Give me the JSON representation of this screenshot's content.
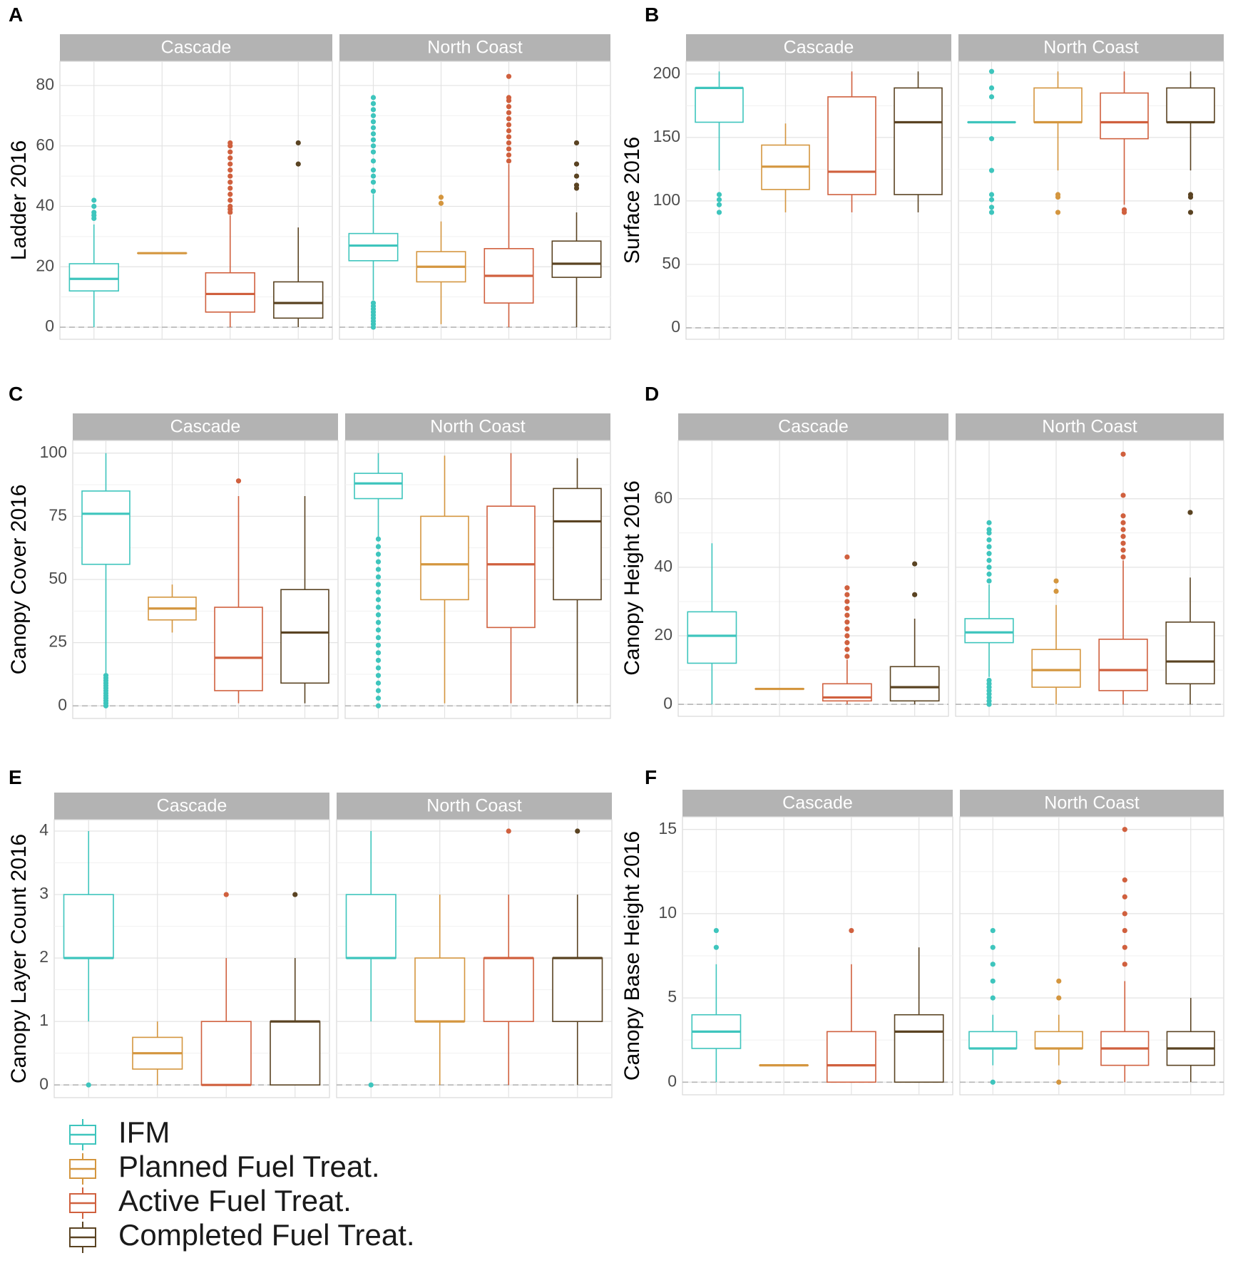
{
  "legend": {
    "items": [
      {
        "label": "IFM",
        "color": "#3ec5bd"
      },
      {
        "label": "Planned Fuel Treat.",
        "color": "#d4963f"
      },
      {
        "label": "Active Fuel Treat.",
        "color": "#d0603e"
      },
      {
        "label": "Completed Fuel Treat.",
        "color": "#5a4322"
      }
    ]
  },
  "chart_data": [
    {
      "type": "boxplot",
      "letter": "A",
      "ylabel": "Ladder 2016",
      "ylim": [
        -4,
        88
      ],
      "yticks": [
        0,
        20,
        40,
        60,
        80
      ],
      "facets": [
        {
          "name": "Cascade",
          "boxes": [
            {
              "group": "IFM",
              "min": 0,
              "q1": 12,
              "median": 16,
              "q3": 21,
              "max": 34,
              "outliers": [
                36,
                37,
                38,
                40,
                42
              ]
            },
            {
              "group": "Planned Fuel Treat.",
              "min": 24.5,
              "q1": 24.5,
              "median": 24.5,
              "q3": 24.5,
              "max": 24.5,
              "outliers": []
            },
            {
              "group": "Active Fuel Treat.",
              "min": 0,
              "q1": 5,
              "median": 11,
              "q3": 18,
              "max": 37,
              "outliers": [
                38,
                39,
                40,
                42,
                44,
                46,
                48,
                50,
                52,
                54,
                56,
                58,
                60,
                61
              ]
            },
            {
              "group": "Completed Fuel Treat.",
              "min": 0,
              "q1": 3,
              "median": 8,
              "q3": 15,
              "max": 33,
              "outliers": [
                54,
                61
              ]
            }
          ]
        },
        {
          "name": "North Coast",
          "boxes": [
            {
              "group": "IFM",
              "min": 9,
              "q1": 22,
              "median": 27,
              "q3": 31,
              "max": 44,
              "outliers": [
                0,
                1,
                2,
                3,
                4,
                5,
                6,
                7,
                8,
                45,
                48,
                50,
                52,
                55,
                58,
                60,
                62,
                64,
                66,
                68,
                70,
                72,
                74,
                76
              ]
            },
            {
              "group": "Planned Fuel Treat.",
              "min": 1,
              "q1": 15,
              "median": 20,
              "q3": 25,
              "max": 35,
              "outliers": [
                41,
                43
              ]
            },
            {
              "group": "Active Fuel Treat.",
              "min": 0,
              "q1": 8,
              "median": 17,
              "q3": 26,
              "max": 54,
              "outliers": [
                55,
                57,
                59,
                61,
                63,
                65,
                67,
                69,
                71,
                73,
                75,
                76,
                83
              ]
            },
            {
              "group": "Completed Fuel Treat.",
              "min": 0,
              "q1": 16.5,
              "median": 21,
              "q3": 28.5,
              "max": 38,
              "outliers": [
                46,
                47,
                50,
                54,
                61
              ]
            }
          ]
        }
      ]
    },
    {
      "type": "boxplot",
      "letter": "B",
      "ylabel": "Surface 2016",
      "ylim": [
        -9,
        210
      ],
      "yticks": [
        0,
        50,
        100,
        150,
        200
      ],
      "facets": [
        {
          "name": "Cascade",
          "boxes": [
            {
              "group": "IFM",
              "min": 124,
              "q1": 162,
              "median": 189,
              "q3": 189,
              "max": 202,
              "outliers": [
                91,
                97,
                101,
                105
              ]
            },
            {
              "group": "Planned Fuel Treat.",
              "min": 91,
              "q1": 109,
              "median": 127,
              "q3": 144,
              "max": 161,
              "outliers": []
            },
            {
              "group": "Active Fuel Treat.",
              "min": 91,
              "q1": 105,
              "median": 123,
              "q3": 182,
              "max": 202,
              "outliers": []
            },
            {
              "group": "Completed Fuel Treat.",
              "min": 91,
              "q1": 105,
              "median": 162,
              "q3": 189,
              "max": 202,
              "outliers": []
            }
          ]
        },
        {
          "name": "North Coast",
          "boxes": [
            {
              "group": "IFM",
              "min": 162,
              "q1": 162,
              "median": 162,
              "q3": 162,
              "max": 162,
              "outliers": [
                91,
                95,
                101,
                105,
                124,
                149,
                182,
                189,
                202
              ]
            },
            {
              "group": "Planned Fuel Treat.",
              "min": 124,
              "q1": 162,
              "median": 162,
              "q3": 189,
              "max": 202,
              "outliers": [
                91,
                103,
                105
              ]
            },
            {
              "group": "Active Fuel Treat.",
              "min": 97,
              "q1": 149,
              "median": 162,
              "q3": 185,
              "max": 202,
              "outliers": [
                91,
                93
              ]
            },
            {
              "group": "Completed Fuel Treat.",
              "min": 124,
              "q1": 162,
              "median": 162,
              "q3": 189,
              "max": 202,
              "outliers": [
                91,
                103,
                105
              ]
            }
          ]
        }
      ]
    },
    {
      "type": "boxplot",
      "letter": "C",
      "ylabel": "Canopy Cover 2016",
      "ylim": [
        -5,
        105
      ],
      "yticks": [
        0,
        25,
        50,
        75,
        100
      ],
      "facets": [
        {
          "name": "Cascade",
          "boxes": [
            {
              "group": "IFM",
              "min": 13,
              "q1": 56,
              "median": 76,
              "q3": 85,
              "max": 100,
              "outliers": [
                0,
                1,
                2,
                3,
                4,
                5,
                6,
                7,
                8,
                9,
                10,
                11,
                12
              ]
            },
            {
              "group": "Planned Fuel Treat.",
              "min": 29,
              "q1": 34,
              "median": 38.5,
              "q3": 43,
              "max": 48,
              "outliers": []
            },
            {
              "group": "Active Fuel Treat.",
              "min": 1,
              "q1": 6,
              "median": 19,
              "q3": 39,
              "max": 83,
              "outliers": [
                89
              ]
            },
            {
              "group": "Completed Fuel Treat.",
              "min": 1,
              "q1": 9,
              "median": 29,
              "q3": 46,
              "max": 83,
              "outliers": []
            }
          ]
        },
        {
          "name": "North Coast",
          "boxes": [
            {
              "group": "IFM",
              "min": 67,
              "q1": 82,
              "median": 88,
              "q3": 92,
              "max": 100,
              "outliers": [
                0,
                3,
                6,
                9,
                12,
                15,
                18,
                21,
                24,
                27,
                30,
                33,
                36,
                39,
                42,
                45,
                48,
                51,
                54,
                57,
                60,
                63,
                66
              ]
            },
            {
              "group": "Planned Fuel Treat.",
              "min": 1,
              "q1": 42,
              "median": 56,
              "q3": 75,
              "max": 99,
              "outliers": []
            },
            {
              "group": "Active Fuel Treat.",
              "min": 1,
              "q1": 31,
              "median": 56,
              "q3": 79,
              "max": 100,
              "outliers": []
            },
            {
              "group": "Completed Fuel Treat.",
              "min": 1,
              "q1": 42,
              "median": 73,
              "q3": 86,
              "max": 98,
              "outliers": []
            }
          ]
        }
      ]
    },
    {
      "type": "boxplot",
      "letter": "D",
      "ylabel": "Canopy Height 2016",
      "ylim": [
        -3.5,
        77
      ],
      "yticks": [
        0,
        20,
        40,
        60
      ],
      "facets": [
        {
          "name": "Cascade",
          "boxes": [
            {
              "group": "IFM",
              "min": 0,
              "q1": 12,
              "median": 20,
              "q3": 27,
              "max": 47,
              "outliers": []
            },
            {
              "group": "Planned Fuel Treat.",
              "min": 4.5,
              "q1": 4.5,
              "median": 4.5,
              "q3": 4.5,
              "max": 4.5,
              "outliers": []
            },
            {
              "group": "Active Fuel Treat.",
              "min": 0,
              "q1": 1,
              "median": 2,
              "q3": 6,
              "max": 13,
              "outliers": [
                14,
                16,
                18,
                20,
                22,
                24,
                26,
                28,
                30,
                32,
                34,
                43
              ]
            },
            {
              "group": "Completed Fuel Treat.",
              "min": 0,
              "q1": 1,
              "median": 5,
              "q3": 11,
              "max": 25,
              "outliers": [
                32,
                41
              ]
            }
          ]
        },
        {
          "name": "North Coast",
          "boxes": [
            {
              "group": "IFM",
              "min": 8,
              "q1": 18,
              "median": 21,
              "q3": 25,
              "max": 35,
              "outliers": [
                0,
                1,
                2,
                3,
                4,
                5,
                6,
                7,
                36,
                38,
                40,
                42,
                44,
                46,
                48,
                50,
                51,
                53
              ]
            },
            {
              "group": "Planned Fuel Treat.",
              "min": 0,
              "q1": 5,
              "median": 10,
              "q3": 16,
              "max": 29,
              "outliers": [
                33,
                36
              ]
            },
            {
              "group": "Active Fuel Treat.",
              "min": 0,
              "q1": 4,
              "median": 10,
              "q3": 19,
              "max": 42,
              "outliers": [
                43,
                45,
                47,
                49,
                51,
                53,
                55,
                61,
                73
              ]
            },
            {
              "group": "Completed Fuel Treat.",
              "min": 0,
              "q1": 6,
              "median": 12.5,
              "q3": 24,
              "max": 37,
              "outliers": [
                56
              ]
            }
          ]
        }
      ]
    },
    {
      "type": "boxplot",
      "letter": "E",
      "ylabel": "Canopy Layer Count 2016",
      "ylim": [
        -0.2,
        4.18
      ],
      "yticks": [
        0,
        1,
        2,
        3,
        4
      ],
      "facets": [
        {
          "name": "Cascade",
          "boxes": [
            {
              "group": "IFM",
              "min": 1,
              "q1": 2,
              "median": 2,
              "q3": 3,
              "max": 4,
              "outliers": [
                0
              ]
            },
            {
              "group": "Planned Fuel Treat.",
              "min": 0,
              "q1": 0.25,
              "median": 0.5,
              "q3": 0.75,
              "max": 1,
              "outliers": []
            },
            {
              "group": "Active Fuel Treat.",
              "min": 0,
              "q1": 0,
              "median": 0,
              "q3": 1,
              "max": 2,
              "outliers": [
                3
              ]
            },
            {
              "group": "Completed Fuel Treat.",
              "min": 0,
              "q1": 0,
              "median": 1,
              "q3": 1,
              "max": 2,
              "outliers": [
                3
              ]
            }
          ]
        },
        {
          "name": "North Coast",
          "boxes": [
            {
              "group": "IFM",
              "min": 1,
              "q1": 2,
              "median": 2,
              "q3": 3,
              "max": 4,
              "outliers": [
                0
              ]
            },
            {
              "group": "Planned Fuel Treat.",
              "min": 0,
              "q1": 1,
              "median": 1,
              "q3": 2,
              "max": 3,
              "outliers": []
            },
            {
              "group": "Active Fuel Treat.",
              "min": 0,
              "q1": 1,
              "median": 2,
              "q3": 2,
              "max": 3,
              "outliers": [
                4
              ]
            },
            {
              "group": "Completed Fuel Treat.",
              "min": 0,
              "q1": 1,
              "median": 2,
              "q3": 2,
              "max": 3,
              "outliers": [
                4
              ]
            }
          ]
        }
      ]
    },
    {
      "type": "boxplot",
      "letter": "F",
      "ylabel": "Canopy Base Height 2016",
      "ylim": [
        -0.75,
        15.75
      ],
      "yticks": [
        0,
        5,
        10,
        15
      ],
      "facets": [
        {
          "name": "Cascade",
          "boxes": [
            {
              "group": "IFM",
              "min": 0,
              "q1": 2,
              "median": 3,
              "q3": 4,
              "max": 7,
              "outliers": [
                8,
                9
              ]
            },
            {
              "group": "Planned Fuel Treat.",
              "min": 1,
              "q1": 1,
              "median": 1,
              "q3": 1,
              "max": 1,
              "outliers": []
            },
            {
              "group": "Active Fuel Treat.",
              "min": 0,
              "q1": 0,
              "median": 1,
              "q3": 3,
              "max": 7,
              "outliers": [
                9
              ]
            },
            {
              "group": "Completed Fuel Treat.",
              "min": 0,
              "q1": 0,
              "median": 3,
              "q3": 4,
              "max": 8,
              "outliers": []
            }
          ]
        },
        {
          "name": "North Coast",
          "boxes": [
            {
              "group": "IFM",
              "min": 1,
              "q1": 2,
              "median": 2,
              "q3": 3,
              "max": 4,
              "outliers": [
                0,
                5,
                6,
                7,
                8,
                9
              ]
            },
            {
              "group": "Planned Fuel Treat.",
              "min": 1,
              "q1": 2,
              "median": 2,
              "q3": 3,
              "max": 4,
              "outliers": [
                0,
                5,
                6
              ]
            },
            {
              "group": "Active Fuel Treat.",
              "min": 0,
              "q1": 1,
              "median": 2,
              "q3": 3,
              "max": 6,
              "outliers": [
                7,
                8,
                9,
                10,
                11,
                12,
                15
              ]
            },
            {
              "group": "Completed Fuel Treat.",
              "min": 0,
              "q1": 1,
              "median": 2,
              "q3": 3,
              "max": 5,
              "outliers": []
            }
          ]
        }
      ]
    }
  ]
}
